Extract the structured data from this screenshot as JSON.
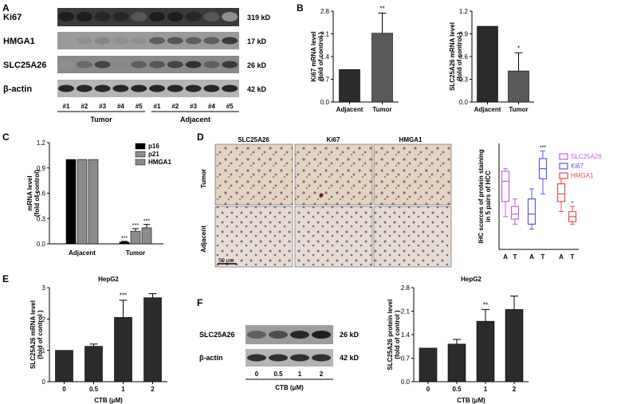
{
  "panel_labels": {
    "a": "A",
    "b": "B",
    "c": "C",
    "d": "D",
    "e": "E",
    "f": "F"
  },
  "blot_a": {
    "rows": [
      {
        "protein": "Ki67",
        "kd": "319 kD"
      },
      {
        "protein": "HMGA1",
        "kd": "17 kD"
      },
      {
        "protein": "SLC25A26",
        "kd": "26 kD"
      },
      {
        "protein": "β-actin",
        "kd": "42 kD"
      }
    ],
    "lanes": [
      "#1",
      "#2",
      "#3",
      "#4",
      "#5",
      "#1",
      "#2",
      "#3",
      "#4",
      "#5"
    ],
    "groups": [
      "Tumor",
      "Adjacent"
    ]
  },
  "ihc_d": {
    "columns": [
      "SLC25A26",
      "Ki67",
      "HMGA1"
    ],
    "rows": [
      "Tumor",
      "Adjacent"
    ],
    "scale_bar": "50 μm"
  },
  "blot_f": {
    "rows": [
      {
        "protein": "SLC25A26",
        "kd": "26 kD"
      },
      {
        "protein": "β-actin",
        "kd": "42 kD"
      }
    ],
    "lanes": [
      "0",
      "0.5",
      "1",
      "2"
    ],
    "xlabel": "CTB (μM)"
  },
  "colors": {
    "dark_bar": "#2b2b2b",
    "mid_bar": "#5a5a5a",
    "light_bar": "#8c8c8c",
    "box_slc": "#c060e0",
    "box_ki67": "#5a5ae0",
    "box_hmga1": "#e05050"
  },
  "chart_data": [
    {
      "id": "b1",
      "type": "bar",
      "categories": [
        "Adjacent",
        "Tumor"
      ],
      "values": [
        1.0,
        2.12
      ],
      "errors": [
        0,
        0.62
      ],
      "ylabel": "Ki67 mRNA level\n(fold of control )",
      "yticks": [
        "0.0",
        "0.7",
        "1.4",
        "2.1",
        "2.8"
      ],
      "ylim": [
        0,
        2.8
      ],
      "annotations": [
        "",
        "**"
      ]
    },
    {
      "id": "b2",
      "type": "bar",
      "categories": [
        "Adjacent",
        "Tumor"
      ],
      "values": [
        1.0,
        0.41
      ],
      "errors": [
        0,
        0.24
      ],
      "ylabel": "SLC25A26 mRNA level\n(fold of control )",
      "yticks": [
        "0.0",
        "0.3",
        "0.6",
        "0.9",
        "1.2"
      ],
      "ylim": [
        0,
        1.2
      ],
      "annotations": [
        "",
        "*"
      ]
    },
    {
      "id": "c",
      "type": "bar",
      "categories": [
        "Adjacent",
        "Tumor"
      ],
      "series": [
        {
          "name": "p16",
          "values": [
            1.0,
            0.02
          ],
          "errors": [
            0,
            0.01
          ]
        },
        {
          "name": "p21",
          "values": [
            1.0,
            0.15
          ],
          "errors": [
            0,
            0.03
          ]
        },
        {
          "name": "HMGA1",
          "values": [
            1.0,
            0.19
          ],
          "errors": [
            0,
            0.04
          ]
        }
      ],
      "ylabel": "mRNA level\n(fold of control)",
      "yticks": [
        "0.0",
        "0.3",
        "0.6",
        "0.9",
        "1.2"
      ],
      "ylim": [
        0,
        1.2
      ],
      "annotations": [
        [
          "",
          "",
          ""
        ],
        [
          "***",
          "***",
          "***"
        ]
      ]
    },
    {
      "id": "d",
      "type": "box",
      "groups": [
        "SLC25A26",
        "Ki67",
        "HMGA1"
      ],
      "categories": [
        "A",
        "T",
        "A",
        "T",
        "A",
        "T"
      ],
      "boxes": [
        {
          "series": "SLC25A26",
          "cat": "A",
          "min": 1.3,
          "q1": 1.9,
          "median": 2.7,
          "q3": 3.1,
          "max": 3.2,
          "annotation": ""
        },
        {
          "series": "SLC25A26",
          "cat": "T",
          "min": 1.0,
          "q1": 1.2,
          "median": 1.4,
          "q3": 1.7,
          "max": 2.0,
          "annotation": ""
        },
        {
          "series": "Ki67",
          "cat": "A",
          "min": 0.8,
          "q1": 1.0,
          "median": 1.4,
          "q3": 2.0,
          "max": 2.4,
          "annotation": ""
        },
        {
          "series": "Ki67",
          "cat": "T",
          "min": 2.2,
          "q1": 2.8,
          "median": 3.2,
          "q3": 3.6,
          "max": 3.9,
          "annotation": "***"
        },
        {
          "series": "HMGA1",
          "cat": "A",
          "min": 1.5,
          "q1": 1.9,
          "median": 2.2,
          "q3": 2.6,
          "max": 2.8,
          "annotation": ""
        },
        {
          "series": "HMGA1",
          "cat": "T",
          "min": 1.0,
          "q1": 1.1,
          "median": 1.3,
          "q3": 1.5,
          "max": 1.7,
          "annotation": "*"
        }
      ],
      "ylabel": "IHC scorces of protein staining\nin 5 pairs of HCC",
      "ylim": [
        0,
        4.2
      ],
      "legend": [
        "SLC25A26",
        "Ki67",
        "HMGA1"
      ]
    },
    {
      "id": "e",
      "type": "bar",
      "title": "HepG2",
      "categories": [
        "0",
        "0.5",
        "1",
        "2"
      ],
      "values": [
        1.0,
        1.13,
        2.05,
        2.68
      ],
      "errors": [
        0,
        0.07,
        0.55,
        0.13
      ],
      "xlabel": "CTB (μM)",
      "ylabel": "SLC25A26 mRNA level\n(fold of control )",
      "yticks": [
        "0",
        "1",
        "2",
        "3"
      ],
      "ylim": [
        0,
        3
      ],
      "annotations": [
        "",
        "",
        "***",
        ""
      ]
    },
    {
      "id": "f",
      "type": "bar",
      "title": "HepG2",
      "categories": [
        "0",
        "0.5",
        "1",
        "2"
      ],
      "values": [
        1.0,
        1.12,
        1.8,
        2.15
      ],
      "errors": [
        0,
        0.14,
        0.35,
        0.4
      ],
      "xlabel": "CTB (μM)",
      "ylabel": "SLC25A26 protein level\n(fold of control )",
      "yticks": [
        "0.0",
        "0.7",
        "1.4",
        "2.1",
        "2.8"
      ],
      "ylim": [
        0,
        2.8
      ],
      "annotations": [
        "",
        "",
        "**",
        ""
      ]
    }
  ]
}
